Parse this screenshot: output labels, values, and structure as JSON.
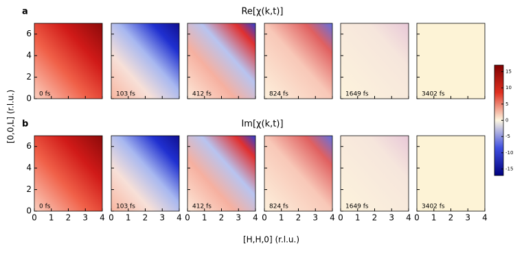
{
  "figure": {
    "xlabel": "[H,H,0] (r.l.u.)",
    "ylabel": "[0,0,L] (r.l.u.)",
    "xlim": [
      0,
      4
    ],
    "xticks": [
      0,
      1,
      2,
      3,
      4
    ],
    "ylim": [
      0,
      7
    ],
    "yticks": [
      0,
      2,
      4,
      6
    ],
    "times": [
      "0 fs",
      "103 fs",
      "412 fs",
      "824 fs",
      "1649 fs",
      "3402 fs"
    ],
    "rows": [
      {
        "letter": "a",
        "title": "Re[χ(k,t)]"
      },
      {
        "letter": "b",
        "title": "Im[χ(k,t)]"
      }
    ],
    "colorbar": {
      "lim": [
        -17,
        17
      ],
      "ticks": [
        15,
        10,
        5,
        0,
        -5,
        -10,
        -15
      ]
    }
  }
}
